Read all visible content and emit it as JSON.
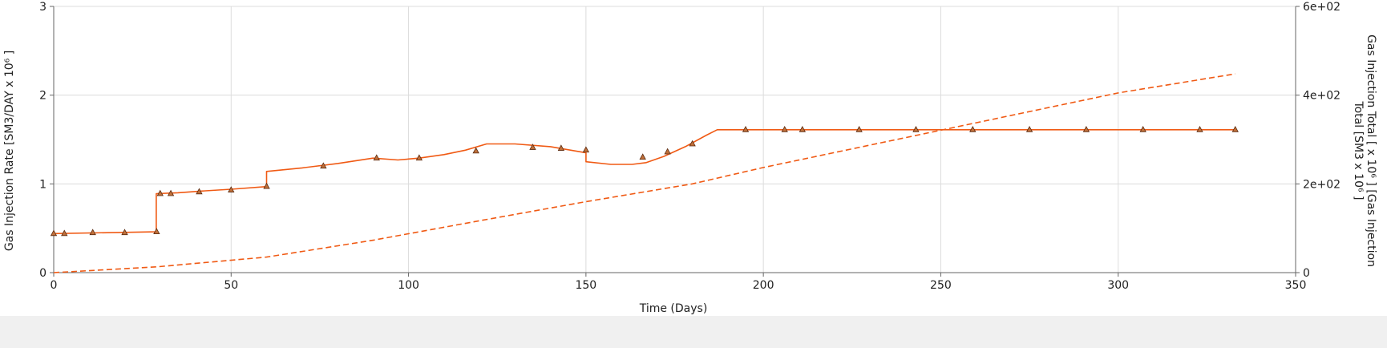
{
  "colors": {
    "series": "#f05a14",
    "marker_fill": "#c0703a",
    "marker_stroke": "#5a2a10"
  },
  "chart_data": {
    "type": "line",
    "xlabel": "Time (Days)",
    "xlim": [
      0,
      350
    ],
    "x_ticks": [
      "0",
      "50",
      "100",
      "150",
      "200",
      "250",
      "300",
      "350"
    ],
    "ylabel": "Gas Injection Rate [SM3/DAY x 10⁶ ]",
    "ylim": [
      0,
      3
    ],
    "y_ticks": [
      "0",
      "1",
      "2",
      "3"
    ],
    "y2label_lines": [
      "Gas Injection Total [ x 10⁶ ] [Gas Injection",
      "Total [SM3 x 10⁶ ]"
    ],
    "y2lim": [
      0,
      600
    ],
    "y2_ticks": [
      {
        "value": 0,
        "label": "0"
      },
      {
        "value": 200,
        "label": "2e+02"
      },
      {
        "value": 400,
        "label": "4e+02"
      },
      {
        "value": 600,
        "label": "6e+02"
      }
    ],
    "grid": true,
    "series": [
      {
        "axis": "left",
        "style": "solid",
        "x": [
          0,
          28.9,
          28.9,
          35,
          42,
          50,
          60,
          60,
          70,
          80,
          90,
          97,
          103,
          110,
          116,
          122,
          130,
          140,
          150,
          150,
          157,
          163,
          167,
          172,
          178,
          184,
          187,
          333
        ],
        "y": [
          0.44,
          0.46,
          0.89,
          0.9,
          0.92,
          0.94,
          0.97,
          1.14,
          1.18,
          1.23,
          1.29,
          1.27,
          1.29,
          1.33,
          1.38,
          1.45,
          1.45,
          1.42,
          1.35,
          1.25,
          1.22,
          1.22,
          1.24,
          1.31,
          1.42,
          1.55,
          1.61,
          1.61
        ]
      },
      {
        "axis": "right",
        "style": "dashed",
        "x": [
          0,
          29,
          60,
          90,
          120,
          150,
          180,
          200,
          250,
          300,
          333
        ],
        "y": [
          0,
          13,
          35,
          73,
          117,
          160,
          200,
          237,
          321,
          405,
          448
        ]
      },
      {
        "axis": "left",
        "style": "markers",
        "x": [
          0,
          3,
          11,
          20,
          29,
          30,
          33,
          41,
          50,
          60,
          76,
          91,
          103,
          119,
          135,
          143,
          150,
          166,
          173,
          180,
          195,
          206,
          211,
          227,
          243,
          259,
          275,
          291,
          307,
          323,
          333
        ],
        "y": [
          0.44,
          0.44,
          0.45,
          0.45,
          0.46,
          0.89,
          0.89,
          0.91,
          0.93,
          0.97,
          1.2,
          1.29,
          1.29,
          1.37,
          1.41,
          1.4,
          1.38,
          1.3,
          1.36,
          1.45,
          1.61,
          1.61,
          1.61,
          1.61,
          1.61,
          1.61,
          1.61,
          1.61,
          1.61,
          1.61,
          1.61
        ]
      }
    ]
  }
}
